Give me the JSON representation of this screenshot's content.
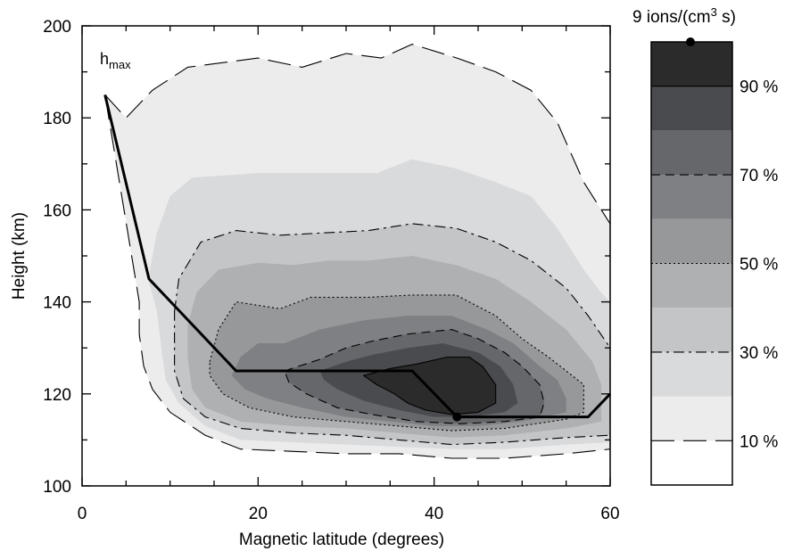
{
  "chart_data": {
    "type": "contour",
    "xlabel": "Magnetic latitude (degrees)",
    "ylabel": "Height (km)",
    "xlim": [
      0,
      60
    ],
    "ylim": [
      100,
      200
    ],
    "xticks": [
      "0",
      "20",
      "40",
      "60"
    ],
    "yticks": [
      "100",
      "120",
      "140",
      "160",
      "180",
      "200"
    ],
    "annotation": {
      "main": "h",
      "sub": "max"
    },
    "hmax_line": {
      "x": [
        2.6,
        7.6,
        17.5,
        37.5,
        42.6,
        57.5,
        60
      ],
      "y": [
        185,
        145,
        125,
        125,
        115,
        115,
        120
      ]
    },
    "peak_marker": {
      "x": 42.6,
      "y": 115
    },
    "colorbar": {
      "title_main": "9 ions/(cm",
      "title_sup": "3",
      "title_end": " s)",
      "labels": [
        "90 %",
        "70 %",
        "50 %",
        "30 %",
        "10 %"
      ],
      "levels_percent": [
        10,
        20,
        30,
        40,
        50,
        60,
        70,
        80,
        90
      ],
      "fills": [
        "#ffffff",
        "#ececed",
        "#d9dadb",
        "#c4c5c6",
        "#afb0b1",
        "#97989a",
        "#7f8083",
        "#66676a",
        "#4a4b4e",
        "#2b2b2c"
      ],
      "line_styles": {
        "10": "long dash",
        "30": "dash-dot",
        "50": "dotted",
        "70": "dashed",
        "90": "solid"
      }
    },
    "contours": [
      {
        "level": 10,
        "fill": "#ececed",
        "line": "longdash",
        "points": [
          [
            2.6,
            185
          ],
          [
            5,
            180
          ],
          [
            8,
            186
          ],
          [
            12,
            191
          ],
          [
            20,
            193
          ],
          [
            25,
            191
          ],
          [
            30,
            194
          ],
          [
            34,
            193
          ],
          [
            37.5,
            196
          ],
          [
            42.6,
            193
          ],
          [
            47,
            190
          ],
          [
            51,
            186
          ],
          [
            54,
            179
          ],
          [
            57,
            166
          ],
          [
            59,
            160
          ],
          [
            60,
            157
          ],
          [
            60,
            108
          ],
          [
            55,
            107
          ],
          [
            48,
            106
          ],
          [
            42,
            106
          ],
          [
            36,
            107
          ],
          [
            30,
            107
          ],
          [
            24,
            107.5
          ],
          [
            18,
            108
          ],
          [
            14,
            111
          ],
          [
            10,
            116
          ],
          [
            8,
            121
          ],
          [
            7,
            126
          ],
          [
            6.5,
            133
          ],
          [
            6.5,
            140
          ]
        ]
      },
      {
        "level": 20,
        "fill": "#d9dadb",
        "line": "none",
        "points": [
          [
            7.5,
            145
          ],
          [
            8.5,
            155
          ],
          [
            10,
            163
          ],
          [
            12.5,
            167
          ],
          [
            20,
            168
          ],
          [
            27,
            168
          ],
          [
            33.5,
            168
          ],
          [
            37.5,
            171
          ],
          [
            42.5,
            169
          ],
          [
            47,
            166
          ],
          [
            51,
            163
          ],
          [
            54,
            156
          ],
          [
            57,
            147
          ],
          [
            59,
            142
          ],
          [
            60,
            140
          ],
          [
            60,
            109.5
          ],
          [
            55,
            109
          ],
          [
            48,
            108
          ],
          [
            42,
            108
          ],
          [
            36,
            108.5
          ],
          [
            30,
            109
          ],
          [
            24,
            109.5
          ],
          [
            18,
            110
          ],
          [
            14,
            113
          ],
          [
            11,
            118
          ],
          [
            9.5,
            123
          ],
          [
            9,
            130
          ],
          [
            8.5,
            138
          ]
        ]
      },
      {
        "level": 30,
        "fill": "#c4c5c6",
        "line": "dashdot",
        "points": [
          [
            10.5,
            138
          ],
          [
            11,
            145
          ],
          [
            13.5,
            153
          ],
          [
            17.5,
            155.5
          ],
          [
            22.5,
            154.5
          ],
          [
            27.5,
            155
          ],
          [
            32.5,
            155.5
          ],
          [
            37.5,
            157
          ],
          [
            42.5,
            156
          ],
          [
            47,
            153
          ],
          [
            51,
            149
          ],
          [
            55,
            143
          ],
          [
            57.5,
            137
          ],
          [
            60,
            130
          ],
          [
            60,
            111
          ],
          [
            55,
            110.5
          ],
          [
            48,
            109.5
          ],
          [
            42,
            109
          ],
          [
            36,
            110
          ],
          [
            30,
            111
          ],
          [
            24,
            111.5
          ],
          [
            18,
            112.5
          ],
          [
            14,
            115
          ],
          [
            11.5,
            119
          ],
          [
            10.5,
            125
          ],
          [
            10.5,
            131
          ]
        ]
      },
      {
        "level": 40,
        "fill": "#afb0b1",
        "line": "none",
        "points": [
          [
            12,
            135
          ],
          [
            13,
            142
          ],
          [
            15.5,
            147
          ],
          [
            20,
            148.5
          ],
          [
            24,
            148
          ],
          [
            28,
            149
          ],
          [
            32.5,
            149
          ],
          [
            37.5,
            150
          ],
          [
            42.5,
            148
          ],
          [
            47,
            145
          ],
          [
            51,
            140
          ],
          [
            55,
            134
          ],
          [
            58,
            127
          ],
          [
            59,
            122
          ],
          [
            59,
            114
          ],
          [
            55,
            112.5
          ],
          [
            48,
            111
          ],
          [
            42,
            110.5
          ],
          [
            36,
            111.5
          ],
          [
            30,
            112.5
          ],
          [
            24,
            113
          ],
          [
            18,
            114
          ],
          [
            14,
            117
          ],
          [
            12.5,
            121
          ],
          [
            12,
            128
          ]
        ]
      },
      {
        "level": 50,
        "fill": "#97989a",
        "line": "dotted",
        "points": [
          [
            14.5,
            127
          ],
          [
            15.5,
            134
          ],
          [
            17.5,
            140
          ],
          [
            22.5,
            138.5
          ],
          [
            26,
            141
          ],
          [
            32.5,
            141
          ],
          [
            37.5,
            141.5
          ],
          [
            42.5,
            141.5
          ],
          [
            47,
            137
          ],
          [
            50,
            132
          ],
          [
            53,
            128
          ],
          [
            55,
            125
          ],
          [
            57,
            122
          ],
          [
            57,
            116
          ],
          [
            55,
            114.5
          ],
          [
            48,
            112.5
          ],
          [
            42,
            112
          ],
          [
            36,
            113
          ],
          [
            30,
            114
          ],
          [
            24,
            115
          ],
          [
            19,
            117
          ],
          [
            16,
            120
          ],
          [
            14.5,
            124
          ]
        ]
      },
      {
        "level": 60,
        "fill": "#7f8083",
        "line": "none",
        "points": [
          [
            17,
            124
          ],
          [
            18,
            128
          ],
          [
            20,
            131
          ],
          [
            23,
            131
          ],
          [
            27,
            134
          ],
          [
            32,
            136
          ],
          [
            37,
            137
          ],
          [
            42,
            137
          ],
          [
            46,
            134
          ],
          [
            49,
            131
          ],
          [
            52,
            126
          ],
          [
            54,
            123
          ],
          [
            55,
            119
          ],
          [
            55,
            116
          ],
          [
            50,
            114
          ],
          [
            45,
            113
          ],
          [
            40,
            113
          ],
          [
            35,
            114
          ],
          [
            30,
            115
          ],
          [
            25,
            117
          ],
          [
            21,
            119
          ],
          [
            18.5,
            121
          ]
        ]
      },
      {
        "level": 70,
        "fill": "#66676a",
        "line": "dashed",
        "points": [
          [
            23,
            125
          ],
          [
            27,
            127.5
          ],
          [
            30,
            130
          ],
          [
            33,
            131.5
          ],
          [
            37,
            133
          ],
          [
            42,
            134
          ],
          [
            45,
            132
          ],
          [
            48,
            129
          ],
          [
            50,
            126
          ],
          [
            52,
            122
          ],
          [
            52.5,
            118
          ],
          [
            52,
            115
          ],
          [
            48,
            114
          ],
          [
            43,
            113.5
          ],
          [
            38,
            114
          ],
          [
            33,
            115.5
          ],
          [
            29,
            117
          ],
          [
            25.5,
            120
          ],
          [
            23.5,
            122.5
          ]
        ]
      },
      {
        "level": 80,
        "fill": "#4a4b4e",
        "line": "none",
        "points": [
          [
            27,
            125
          ],
          [
            30,
            127
          ],
          [
            33,
            128.5
          ],
          [
            37,
            130
          ],
          [
            41,
            131
          ],
          [
            45,
            129
          ],
          [
            47.5,
            126
          ],
          [
            49,
            122
          ],
          [
            49.5,
            118
          ],
          [
            48,
            116
          ],
          [
            44,
            115
          ],
          [
            40,
            115
          ],
          [
            36,
            116.5
          ],
          [
            32,
            118.5
          ],
          [
            29,
            121
          ],
          [
            27.5,
            123
          ]
        ]
      },
      {
        "level": 90,
        "fill": "#2b2b2c",
        "line": "solid",
        "points": [
          [
            32,
            124
          ],
          [
            35,
            125.5
          ],
          [
            38,
            126.5
          ],
          [
            41.5,
            128
          ],
          [
            44,
            128
          ],
          [
            45.5,
            126
          ],
          [
            47,
            122
          ],
          [
            47,
            118
          ],
          [
            45,
            116
          ],
          [
            42,
            115.5
          ],
          [
            39,
            116.5
          ],
          [
            37,
            118
          ],
          [
            35.5,
            120
          ],
          [
            33.5,
            122
          ]
        ]
      }
    ]
  }
}
